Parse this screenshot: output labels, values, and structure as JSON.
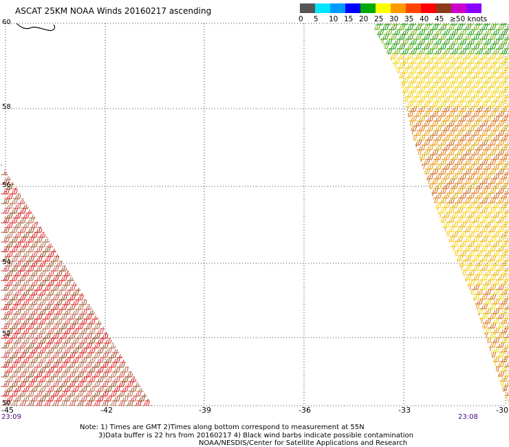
{
  "title": "ASCAT 25KM NOAA Winds 20160217 ascending",
  "legend": {
    "colors": [
      "#555555",
      "#00e5ff",
      "#0099ff",
      "#0000ff",
      "#00aa00",
      "#ffff00",
      "#ff9900",
      "#ff4400",
      "#ff0000",
      "#8b3a1a",
      "#cc00cc",
      "#8800ff"
    ],
    "labels": [
      "0",
      "5",
      "10",
      "15",
      "20",
      "25",
      "30",
      "35",
      "40",
      "45",
      "≥50 knots"
    ]
  },
  "axes": {
    "lon_ticks": [
      "-45",
      "-42",
      "-39",
      "-36",
      "-33",
      "-30"
    ],
    "lat_ticks": [
      "50",
      "52",
      "54",
      "56",
      "58",
      "60"
    ]
  },
  "timestamps": {
    "left": "23:09",
    "right": "23:08"
  },
  "notes": {
    "line1": "Note: 1) Times are GMT 2)Times along bottom correspond to measurement at 55N",
    "line2": "3)Data buffer is 22 hrs from 20160217 4) Black wind barbs indicate possible contamination",
    "line3": "NOAA/NESDIS/Center for Satellite Applications and Research"
  }
}
